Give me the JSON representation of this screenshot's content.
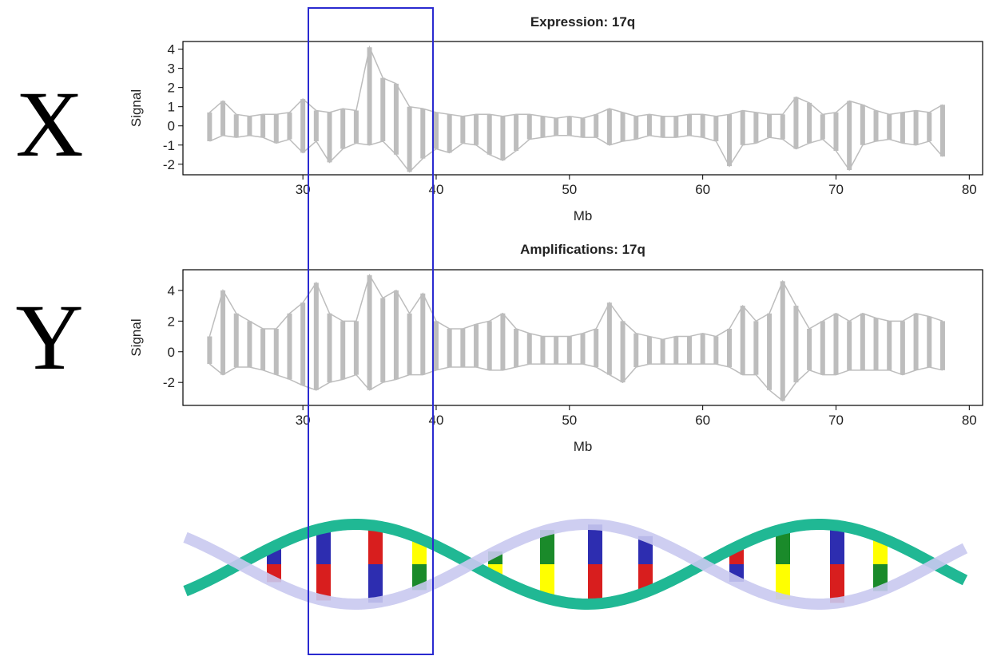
{
  "labels": {
    "left_top": "X",
    "left_bottom": "Y"
  },
  "chart_data": [
    {
      "type": "line",
      "title": "Expression: 17q",
      "x_label": "Mb",
      "y_label": "Signal",
      "x": [
        23,
        24,
        25,
        26,
        27,
        28,
        29,
        30,
        31,
        32,
        33,
        34,
        35,
        36,
        37,
        38,
        39,
        40,
        41,
        42,
        43,
        44,
        45,
        46,
        47,
        48,
        49,
        50,
        51,
        52,
        53,
        54,
        55,
        56,
        57,
        58,
        59,
        60,
        61,
        62,
        63,
        64,
        65,
        66,
        67,
        68,
        69,
        70,
        71,
        72,
        73,
        74,
        75,
        76,
        77,
        78
      ],
      "xlim": [
        21,
        81
      ],
      "xticks": [
        30,
        40,
        50,
        60,
        70,
        80
      ],
      "ylim": [
        -2.55,
        4.4
      ],
      "yticks": [
        -2,
        -1,
        0,
        1,
        2,
        3,
        4
      ],
      "series": [
        {
          "color": "#bdbdbd",
          "values": [
            0.7,
            1.3,
            0.6,
            0.5,
            0.6,
            0.6,
            0.7,
            1.4,
            0.8,
            0.7,
            0.9,
            0.8,
            4.1,
            2.5,
            2.2,
            1.0,
            0.9,
            0.7,
            0.6,
            0.5,
            0.6,
            0.6,
            0.5,
            0.6,
            0.6,
            0.5,
            0.4,
            0.5,
            0.4,
            0.6,
            0.9,
            0.7,
            0.5,
            0.6,
            0.5,
            0.5,
            0.6,
            0.6,
            0.5,
            0.6,
            0.8,
            0.7,
            0.6,
            0.6,
            1.5,
            1.2,
            0.6,
            0.7,
            1.3,
            1.1,
            0.8,
            0.6,
            0.7,
            0.8,
            0.7,
            1.1
          ]
        },
        {
          "color": "#bdbdbd",
          "values": [
            -0.8,
            -0.5,
            -0.6,
            -0.5,
            -0.6,
            -0.9,
            -0.7,
            -1.4,
            -0.8,
            -1.9,
            -1.2,
            -0.9,
            -1.0,
            -0.8,
            -1.5,
            -2.4,
            -1.7,
            -1.2,
            -1.4,
            -0.9,
            -1.0,
            -1.5,
            -1.8,
            -1.3,
            -0.7,
            -0.6,
            -0.5,
            -0.5,
            -0.6,
            -0.6,
            -1.0,
            -0.8,
            -0.7,
            -0.5,
            -0.6,
            -0.6,
            -0.5,
            -0.6,
            -0.8,
            -2.1,
            -1.0,
            -0.9,
            -0.6,
            -0.7,
            -1.2,
            -0.9,
            -0.7,
            -1.3,
            -2.3,
            -1.0,
            -0.8,
            -0.7,
            -0.9,
            -1.0,
            -0.8,
            -1.6
          ]
        }
      ]
    },
    {
      "type": "line",
      "title": "Amplifications: 17q",
      "x_label": "Mb",
      "y_label": "Signal",
      "x": [
        23,
        24,
        25,
        26,
        27,
        28,
        29,
        30,
        31,
        32,
        33,
        34,
        35,
        36,
        37,
        38,
        39,
        40,
        41,
        42,
        43,
        44,
        45,
        46,
        47,
        48,
        49,
        50,
        51,
        52,
        53,
        54,
        55,
        56,
        57,
        58,
        59,
        60,
        61,
        62,
        63,
        64,
        65,
        66,
        67,
        68,
        69,
        70,
        71,
        72,
        73,
        74,
        75,
        76,
        77,
        78
      ],
      "xlim": [
        21,
        81
      ],
      "xticks": [
        30,
        40,
        50,
        60,
        70,
        80
      ],
      "ylim": [
        -3.5,
        5.35
      ],
      "yticks": [
        -2,
        0,
        2,
        4
      ],
      "series": [
        {
          "color": "#bdbdbd",
          "values": [
            1.0,
            4.0,
            2.5,
            2.0,
            1.5,
            1.5,
            2.5,
            3.2,
            4.5,
            2.5,
            2.0,
            2.0,
            5.0,
            3.5,
            4.0,
            2.5,
            3.8,
            2.0,
            1.5,
            1.5,
            1.8,
            2.0,
            2.5,
            1.5,
            1.2,
            1.0,
            1.0,
            1.0,
            1.2,
            1.5,
            3.2,
            2.0,
            1.2,
            1.0,
            0.8,
            1.0,
            1.0,
            1.2,
            1.0,
            1.5,
            3.0,
            2.0,
            2.5,
            4.6,
            3.0,
            1.5,
            2.0,
            2.5,
            2.0,
            2.5,
            2.2,
            2.0,
            2.0,
            2.5,
            2.3,
            2.0
          ]
        },
        {
          "color": "#bdbdbd",
          "values": [
            -0.8,
            -1.5,
            -1.0,
            -1.0,
            -1.2,
            -1.5,
            -1.8,
            -2.2,
            -2.5,
            -2.0,
            -1.8,
            -1.5,
            -2.5,
            -2.0,
            -1.8,
            -1.5,
            -1.5,
            -1.2,
            -1.0,
            -1.0,
            -1.0,
            -1.2,
            -1.2,
            -1.0,
            -0.8,
            -0.8,
            -0.8,
            -0.8,
            -0.8,
            -1.0,
            -1.5,
            -2.0,
            -1.0,
            -0.8,
            -0.8,
            -0.8,
            -0.8,
            -0.8,
            -0.8,
            -1.0,
            -1.5,
            -1.5,
            -2.5,
            -3.2,
            -2.0,
            -1.2,
            -1.5,
            -1.5,
            -1.2,
            -1.2,
            -1.2,
            -1.2,
            -1.5,
            -1.2,
            -1.0,
            -1.2
          ]
        }
      ]
    }
  ]
}
